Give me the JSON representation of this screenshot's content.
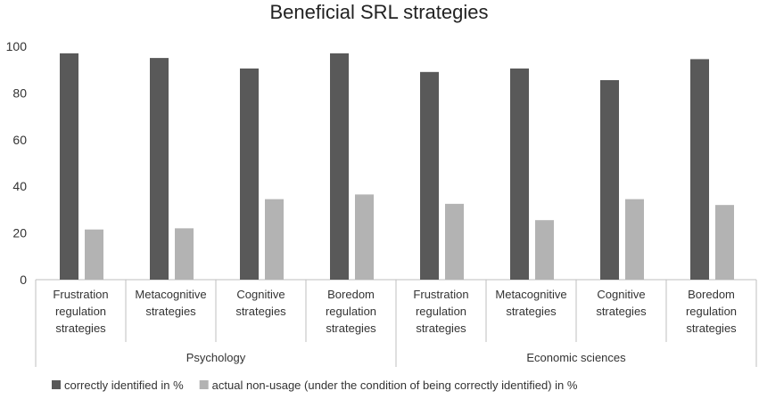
{
  "chart_data": {
    "type": "bar",
    "title": "Beneficial SRL strategies",
    "xlabel": "",
    "ylabel": "",
    "ylim": [
      0,
      100
    ],
    "yticks": [
      0,
      20,
      40,
      60,
      80,
      100
    ],
    "grid": false,
    "legend_position": "bottom",
    "groups": [
      {
        "name": "Psychology",
        "categories": [
          [
            "Frustration",
            "regulation",
            "strategies"
          ],
          [
            "Metacognitive",
            "strategies"
          ],
          [
            "Cognitive",
            "strategies"
          ],
          [
            "Boredom",
            "regulation",
            "strategies"
          ]
        ]
      },
      {
        "name": "Economic sciences",
        "categories": [
          [
            "Frustration",
            "regulation",
            "strategies"
          ],
          [
            "Metacognitive",
            "strategies"
          ],
          [
            "Cognitive",
            "strategies"
          ],
          [
            "Boredom",
            "regulation",
            "strategies"
          ]
        ]
      }
    ],
    "series": [
      {
        "name": "correctly identified in %",
        "color": "#595959",
        "values": [
          97,
          95,
          90.5,
          97,
          89,
          90.5,
          85.5,
          94.5
        ]
      },
      {
        "name": "actual non-usage (under the condition of being correctly identified) in %",
        "color": "#b3b3b3",
        "values": [
          21.5,
          22,
          34.5,
          36.5,
          32.5,
          25.5,
          34.5,
          32
        ]
      }
    ]
  }
}
